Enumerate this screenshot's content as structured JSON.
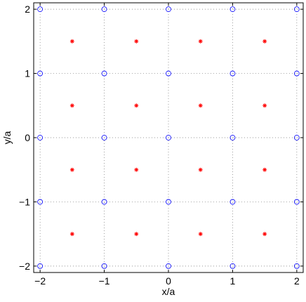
{
  "chart_data": {
    "type": "scatter",
    "xlabel": "x/a",
    "ylabel": "y/a",
    "xlim": [
      -2.1,
      2.1
    ],
    "ylim": [
      -2.1,
      2.1
    ],
    "xticks": [
      {
        "value": -2,
        "label": "−2"
      },
      {
        "value": -1,
        "label": "−1"
      },
      0,
      1,
      2
    ],
    "yticks": [
      {
        "value": -2,
        "label": "−2"
      },
      {
        "value": -1,
        "label": "−1"
      },
      0,
      1,
      2
    ],
    "grid": true,
    "series": [
      {
        "color": "#0000ff",
        "marker": "circle",
        "x": [
          -2,
          -1,
          0,
          1,
          2,
          -2,
          -1,
          0,
          1,
          2,
          -2,
          -1,
          0,
          1,
          2,
          -2,
          -1,
          0,
          1,
          2,
          -2,
          -1,
          0,
          1,
          2
        ],
        "y": [
          2,
          2,
          2,
          2,
          2,
          1,
          1,
          1,
          1,
          1,
          0,
          0,
          0,
          0,
          0,
          -1,
          -1,
          -1,
          -1,
          -1,
          -2,
          -2,
          -2,
          -2,
          -2
        ]
      },
      {
        "color": "#ff0000",
        "marker": "star",
        "x": [
          -1.5,
          -0.5,
          0.5,
          1.5,
          -1.5,
          -0.5,
          0.5,
          1.5,
          -1.5,
          -0.5,
          0.5,
          1.5,
          -1.5,
          -0.5,
          0.5,
          1.5
        ],
        "y": [
          1.5,
          1.5,
          1.5,
          1.5,
          0.5,
          0.5,
          0.5,
          0.5,
          -0.5,
          -0.5,
          -0.5,
          -0.5,
          -1.5,
          -1.5,
          -1.5,
          -1.5
        ]
      }
    ]
  }
}
